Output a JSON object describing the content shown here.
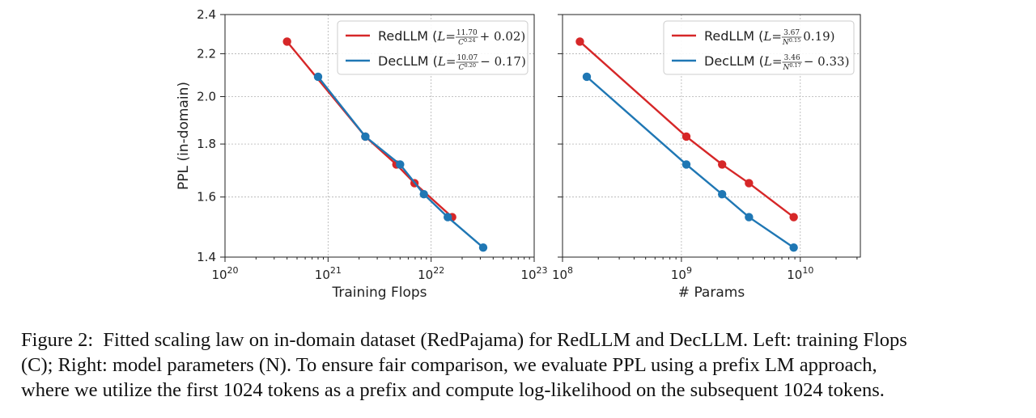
{
  "chart_data": [
    {
      "type": "line",
      "xscale": "log",
      "yscale": "log",
      "xlim": [
        1e+20,
        1e+23
      ],
      "ylim": [
        1.4,
        2.4
      ],
      "xlabel": "Training Flops",
      "ylabel": "PPL (in-domain)",
      "x_tick_labels": [
        [
          "10",
          "20"
        ],
        [
          "10",
          "21"
        ],
        [
          "10",
          "22"
        ],
        [
          "10",
          "23"
        ]
      ],
      "y_tick_labels": [
        "1.4",
        "1.6",
        "1.8",
        "2.0",
        "2.2",
        "2.4"
      ],
      "grid": true,
      "legend_position": "upper right",
      "series": [
        {
          "name": "RedLLM",
          "color": "#d62728",
          "legend": {
            "prefix": "RedLLM (",
            "var": "L",
            "eq": " = ",
            "num": "11.70",
            "den": "C",
            "den_exp": "0.24",
            "tail": " + 0.02)"
          },
          "x": [
            4e+20,
            2.3e+21,
            4.6e+21,
            6.9e+21,
            1.6e+22
          ],
          "y": [
            2.26,
            1.83,
            1.72,
            1.65,
            1.53
          ]
        },
        {
          "name": "DecLLM",
          "color": "#1f77b4",
          "legend": {
            "prefix": "DecLLM (",
            "var": "L",
            "eq": " = ",
            "num": "10.07",
            "den": "C",
            "den_exp": "0.20",
            "tail": " − 0.17)"
          },
          "x": [
            8e+20,
            2.3e+21,
            5e+21,
            8.5e+21,
            1.45e+22,
            3.2e+22
          ],
          "y": [
            2.09,
            1.83,
            1.72,
            1.61,
            1.53,
            1.43
          ]
        }
      ]
    },
    {
      "type": "line",
      "xscale": "log",
      "yscale": "log",
      "xlim": [
        100000000.0,
        32000000000.0
      ],
      "ylim": [
        1.4,
        2.4
      ],
      "xlabel": "# Params",
      "x_tick_labels": [
        [
          "10",
          "8"
        ],
        [
          "10",
          "9"
        ],
        [
          "10",
          "10"
        ]
      ],
      "grid": true,
      "legend_position": "upper right",
      "series": [
        {
          "name": "RedLLM",
          "color": "#d62728",
          "legend": {
            "prefix": "RedLLM (",
            "var": "L",
            "eq": " = ",
            "num": "3.67",
            "den": "N",
            "den_exp": "0.15",
            "tail": "   0.19)"
          },
          "x": [
            140000000.0,
            1100000000.0,
            2200000000.0,
            3700000000.0,
            8800000000.0
          ],
          "y": [
            2.26,
            1.83,
            1.72,
            1.65,
            1.53
          ]
        },
        {
          "name": "DecLLM",
          "color": "#1f77b4",
          "legend": {
            "prefix": "DecLLM (",
            "var": "L",
            "eq": " = ",
            "num": "3.46",
            "den": "N",
            "den_exp": "0.17",
            "tail": " − 0.33)"
          },
          "x": [
            160000000.0,
            1100000000.0,
            2200000000.0,
            3700000000.0,
            8800000000.0
          ],
          "y": [
            2.09,
            1.72,
            1.61,
            1.53,
            1.43
          ]
        }
      ]
    }
  ],
  "caption": {
    "label": "Figure 2:",
    "lines": [
      "Fitted scaling law on in-domain dataset (RedPajama) for RedLLM and DecLLM. Left: training Flops",
      "(C); Right: model parameters (N). To ensure fair comparison, we evaluate PPL using a prefix LM approach,",
      "where we utilize the first 1024 tokens as a prefix and compute log-likelihood on the subsequent 1024 tokens."
    ]
  }
}
